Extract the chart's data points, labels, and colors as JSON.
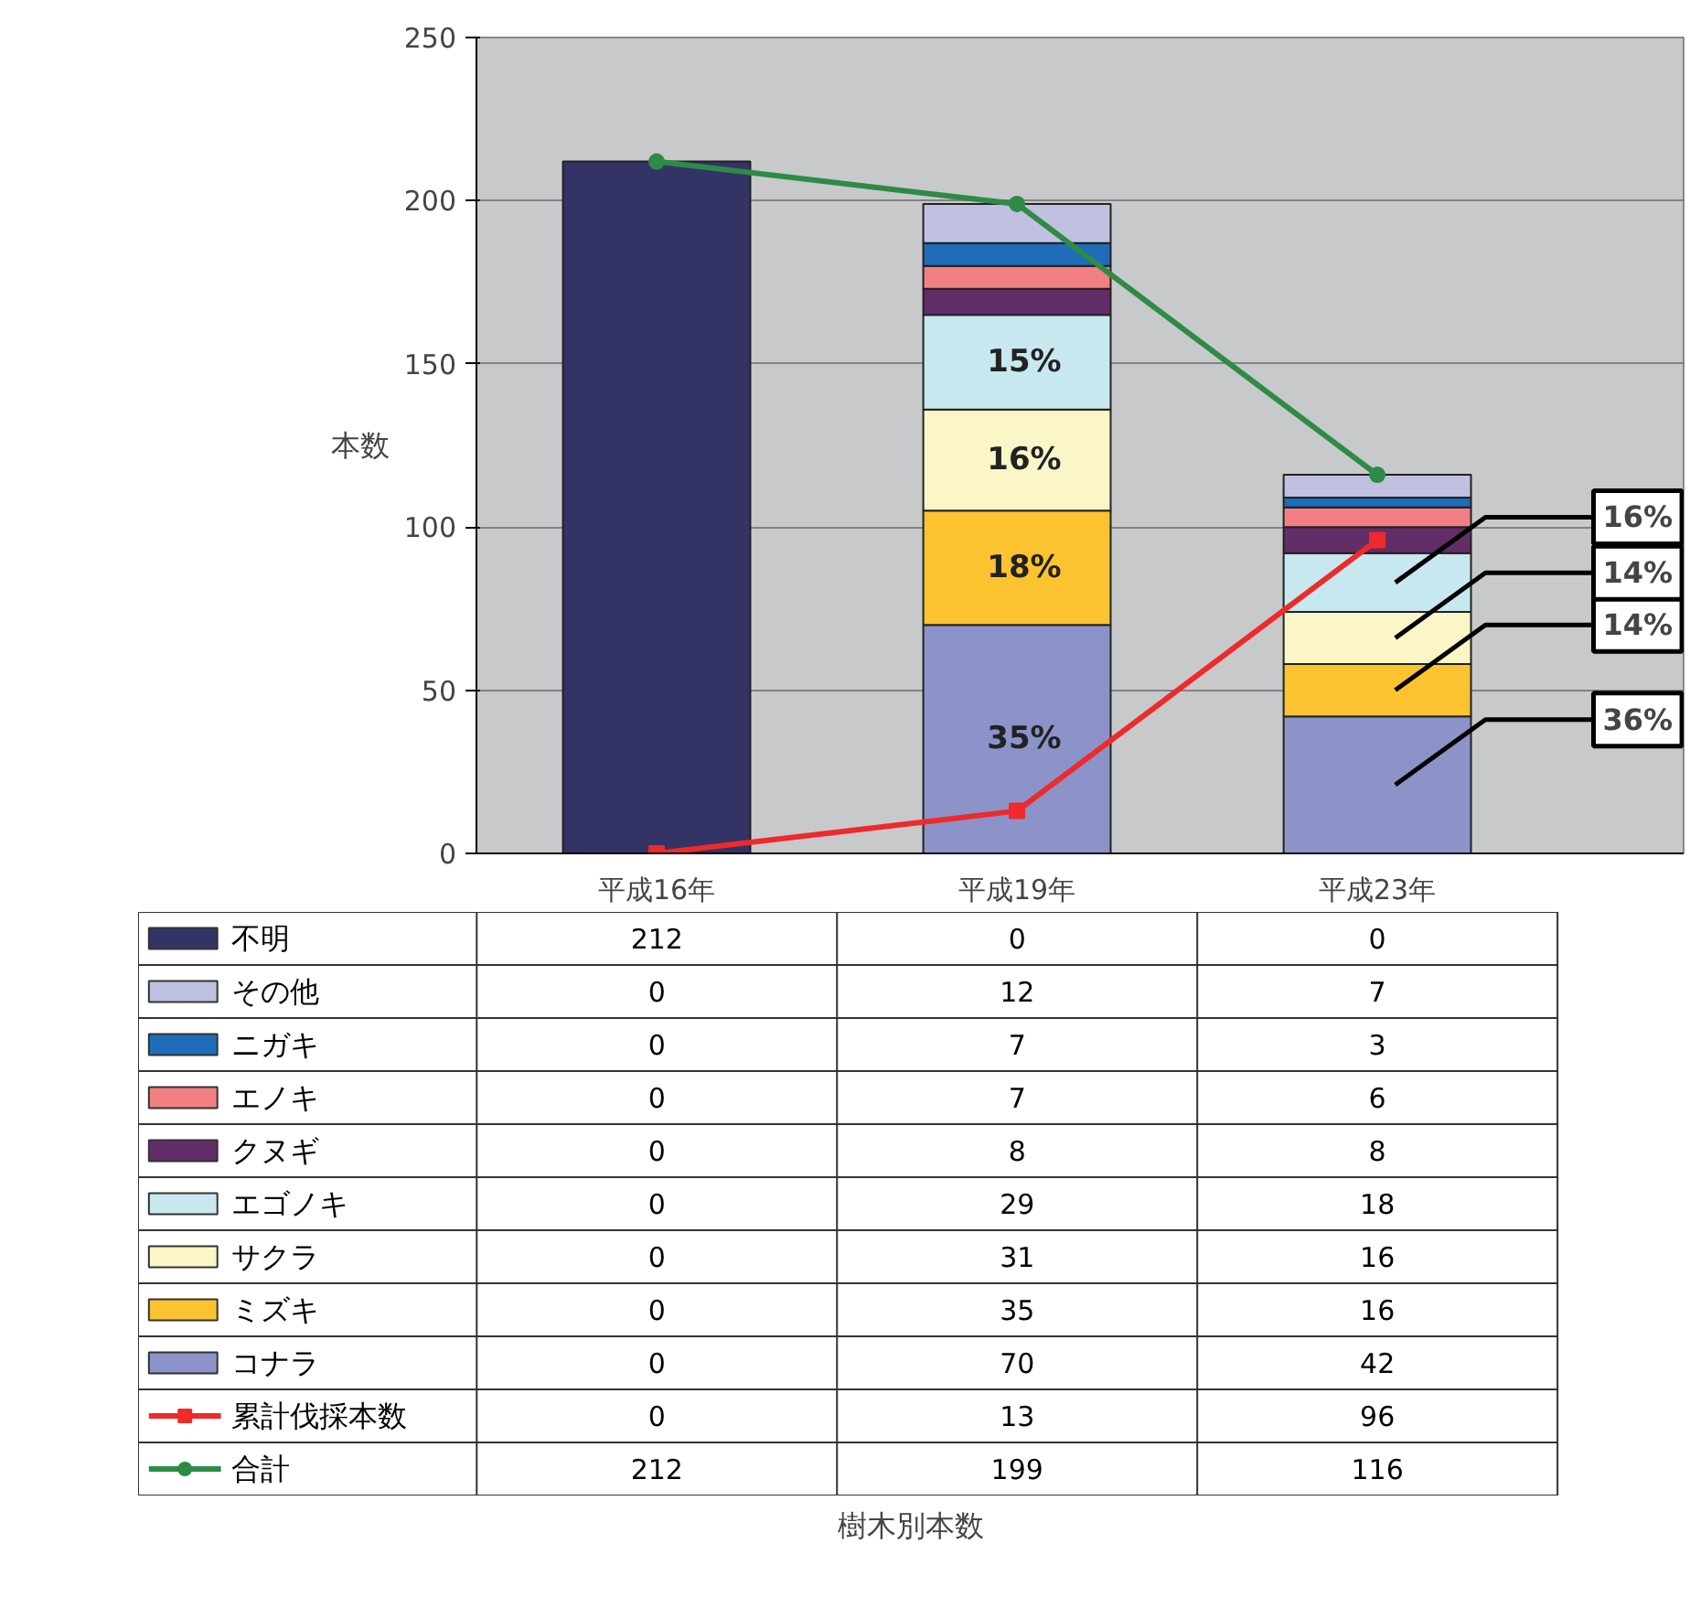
{
  "chart_data": {
    "type": "bar",
    "stacked": true,
    "ylabel": "本数",
    "categories": [
      "平成16年",
      "平成19年",
      "平成23年"
    ],
    "ylim": [
      0,
      250
    ],
    "yticks": [
      0,
      50,
      100,
      150,
      200,
      250
    ],
    "grid": "y",
    "data_labels": true,
    "legend": "bottom",
    "series": [
      {
        "name": "コナラ",
        "color": "#8b93c9",
        "values": [
          0,
          70,
          42
        ]
      },
      {
        "name": "ミズキ",
        "color": "#fcc330",
        "values": [
          0,
          35,
          16
        ]
      },
      {
        "name": "サクラ",
        "color": "#faf6c8",
        "values": [
          0,
          31,
          16
        ]
      },
      {
        "name": "エゴノキ",
        "color": "#c6e8ee",
        "values": [
          0,
          29,
          18
        ]
      },
      {
        "name": "クヌギ",
        "color": "#632d67",
        "values": [
          0,
          8,
          8
        ]
      },
      {
        "name": "エノキ",
        "color": "#f28083",
        "values": [
          0,
          7,
          6
        ]
      },
      {
        "name": "ニガキ",
        "color": "#1f6cb8",
        "values": [
          0,
          7,
          3
        ]
      },
      {
        "name": "その他",
        "color": "#c0c0e0",
        "values": [
          0,
          12,
          7
        ]
      },
      {
        "name": "不明",
        "color": "#333366",
        "values": [
          212,
          0,
          0
        ]
      },
      {
        "name": "累計伐採本数",
        "type": "line",
        "marker": "square",
        "color": "#ee2a2a",
        "values": [
          0,
          13,
          96
        ]
      },
      {
        "name": "合計",
        "type": "line",
        "marker": "circle",
        "color": "#2e8b45",
        "values": [
          212,
          199,
          116
        ]
      }
    ],
    "annotations": [
      "樹木別本数",
      "35%",
      "18%",
      "16%",
      "15%",
      "36%",
      "14%",
      "14%",
      "16%"
    ]
  }
}
